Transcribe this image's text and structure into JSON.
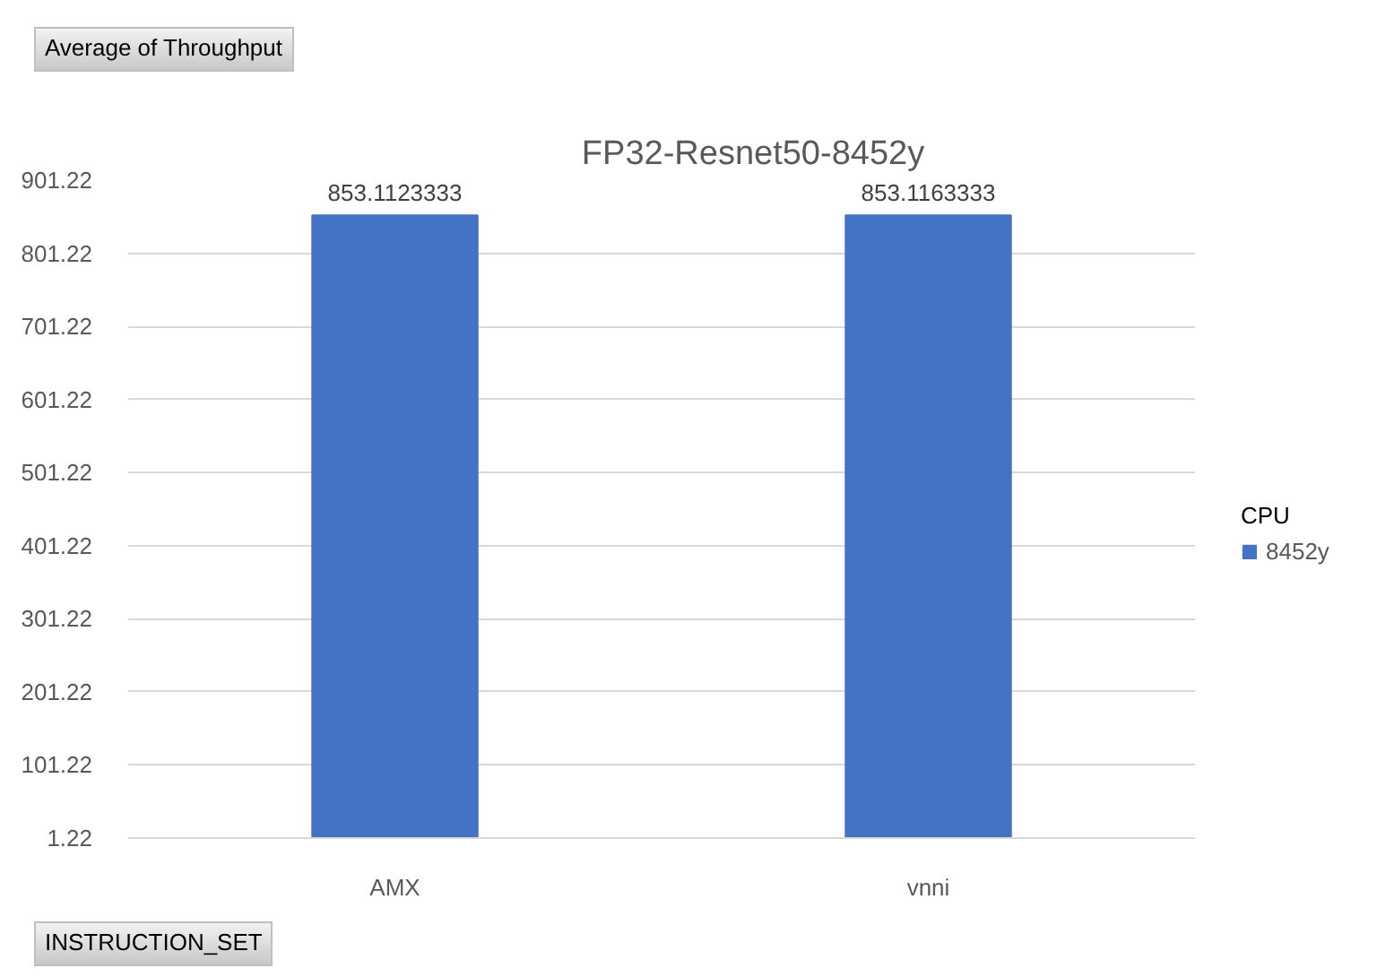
{
  "chart_data": {
    "type": "bar",
    "title": "FP32-Resnet50-8452y",
    "xlabel": "INSTRUCTION_SET",
    "legend_title": "CPU",
    "annotations": [
      "Average of Throughput"
    ],
    "categories": [
      "AMX",
      "vnni"
    ],
    "series": [
      {
        "name": "8452y",
        "color": "#4472c4",
        "values": [
          853.1123333,
          853.1163333
        ]
      }
    ],
    "ylim": [
      1.22,
      901.22
    ],
    "yticks": [
      1.22,
      101.22,
      201.22,
      301.22,
      401.22,
      501.22,
      601.22,
      701.22,
      801.22,
      901.22
    ],
    "grid": "y",
    "legend": "right",
    "data_labels": true
  }
}
